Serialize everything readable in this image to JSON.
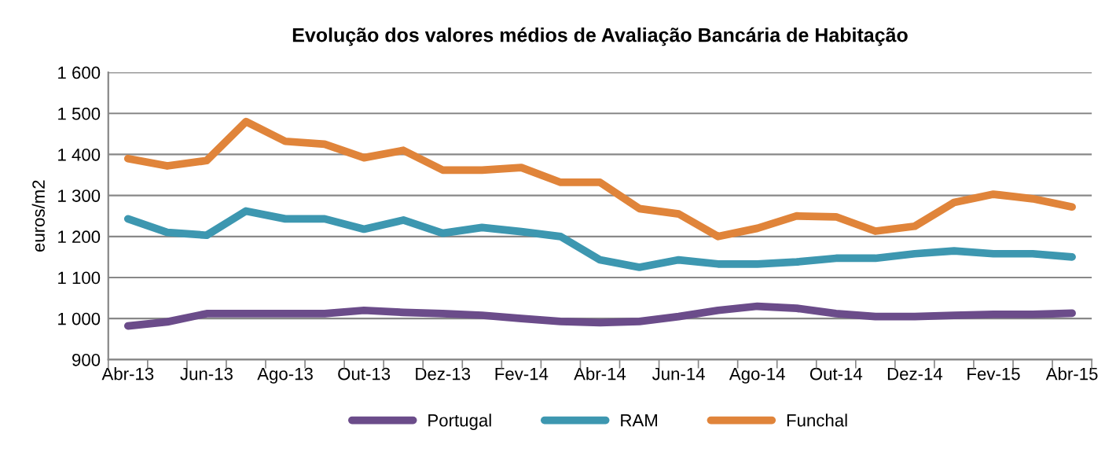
{
  "chart_data": {
    "type": "line",
    "title": "Evolução dos valores médios de Avaliação Bancária de Habitação",
    "ylabel": "euros/m2",
    "categories": [
      "Abr-13",
      null,
      "Jun-13",
      null,
      "Ago-13",
      null,
      "Out-13",
      null,
      "Dez-13",
      null,
      "Fev-14",
      null,
      "Abr-14",
      null,
      "Jun-14",
      null,
      "Ago-14",
      null,
      "Out-14",
      null,
      "Dez-14",
      null,
      "Fev-15",
      null,
      "Abr-15"
    ],
    "series": [
      {
        "name": "Portugal",
        "color": "#6b4c8a",
        "values": [
          982,
          992,
          1012,
          1012,
          1012,
          1012,
          1020,
          1015,
          1012,
          1008,
          1000,
          993,
          990,
          993,
          1005,
          1020,
          1030,
          1025,
          1012,
          1005,
          1005,
          1008,
          1010,
          1010,
          1013
        ]
      },
      {
        "name": "RAM",
        "color": "#3d97b0",
        "values": [
          1243,
          1210,
          1203,
          1262,
          1243,
          1243,
          1218,
          1240,
          1208,
          1222,
          1212,
          1200,
          1143,
          1125,
          1143,
          1133,
          1133,
          1138,
          1147,
          1147,
          1158,
          1165,
          1158,
          1158,
          1150
        ]
      },
      {
        "name": "Funchal",
        "color": "#e0843a",
        "values": [
          1390,
          1372,
          1385,
          1480,
          1432,
          1425,
          1392,
          1410,
          1362,
          1362,
          1368,
          1332,
          1332,
          1268,
          1255,
          1200,
          1220,
          1250,
          1248,
          1213,
          1225,
          1283,
          1303,
          1292,
          1272
        ]
      }
    ],
    "ylim": [
      900,
      1600
    ],
    "yticks": [
      {
        "value": 900,
        "label": "900"
      },
      {
        "value": 1000,
        "label": "1 000"
      },
      {
        "value": 1100,
        "label": "1 100"
      },
      {
        "value": 1200,
        "label": "1 200"
      },
      {
        "value": 1300,
        "label": "1 300"
      },
      {
        "value": 1400,
        "label": "1 400"
      },
      {
        "value": 1500,
        "label": "1 500"
      },
      {
        "value": 1600,
        "label": "1 600"
      }
    ],
    "grid": "y",
    "legend": "bottom"
  }
}
